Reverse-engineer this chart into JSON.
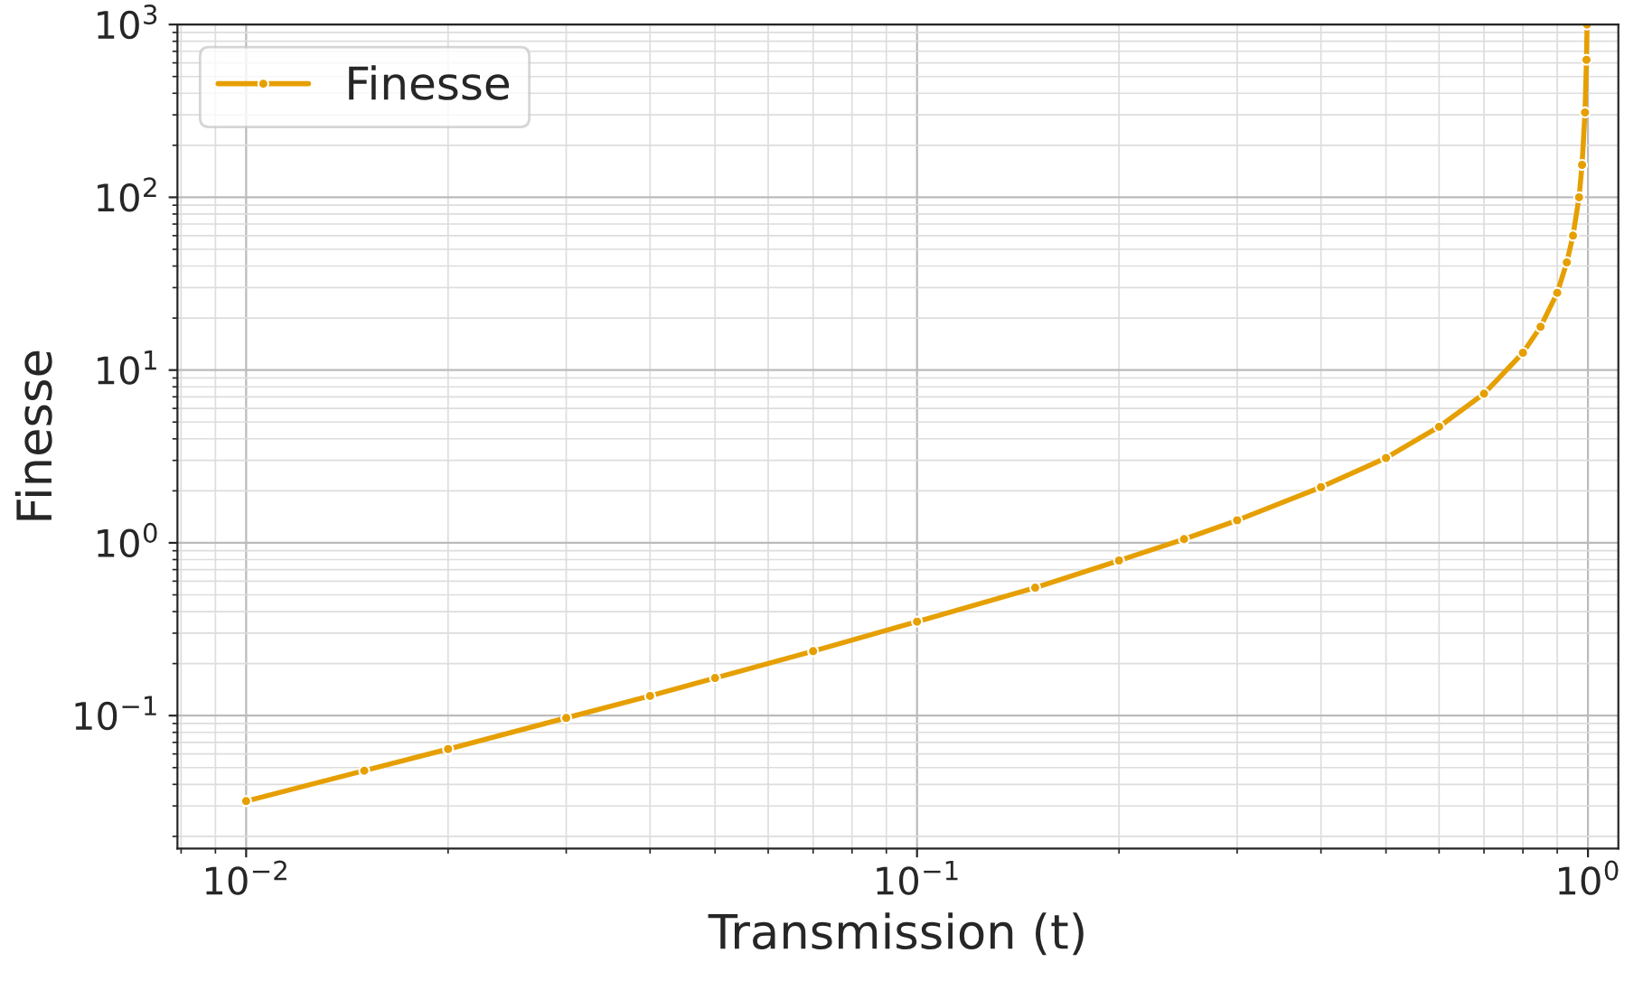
{
  "chart_data": {
    "type": "line",
    "xlabel": "Transmission (t)",
    "ylabel": "Finesse",
    "log": "xy",
    "grid": true,
    "legend": "top left",
    "marker": "circle",
    "line_style": "solid",
    "xlim": [
      0.0079,
      1.11
    ],
    "ylim": [
      0.017,
      1000
    ],
    "xticks": [
      {
        "value": 0.01,
        "label": "10$^{−2}$"
      },
      {
        "value": 0.1,
        "label": "10$^{−1}$"
      },
      {
        "value": 1,
        "label": "10$^{0}$"
      }
    ],
    "yticks": [
      {
        "value": 0.1,
        "label": "10$^{−1}$"
      },
      {
        "value": 1,
        "label": "10$^{0}$"
      },
      {
        "value": 10,
        "label": "10$^{1}$"
      },
      {
        "value": 100,
        "label": "10$^{2}$"
      },
      {
        "value": 1000,
        "label": "10$^{3}$"
      }
    ],
    "series": [
      {
        "name": "Finesse",
        "color": "#e69f00",
        "x": [
          0.01,
          0.015,
          0.02,
          0.03,
          0.04,
          0.05,
          0.07,
          0.1,
          0.15,
          0.2,
          0.25,
          0.3,
          0.4,
          0.5,
          0.6,
          0.7,
          0.8,
          0.85,
          0.9,
          0.93,
          0.95,
          0.97,
          0.98,
          0.99,
          0.995,
          0.997
        ],
        "values": [
          0.032,
          0.048,
          0.064,
          0.097,
          0.13,
          0.165,
          0.236,
          0.35,
          0.55,
          0.79,
          1.05,
          1.35,
          2.1,
          3.1,
          4.7,
          7.3,
          12.6,
          17.8,
          28,
          42,
          60,
          100,
          154,
          310,
          625,
          1000
        ]
      }
    ]
  }
}
